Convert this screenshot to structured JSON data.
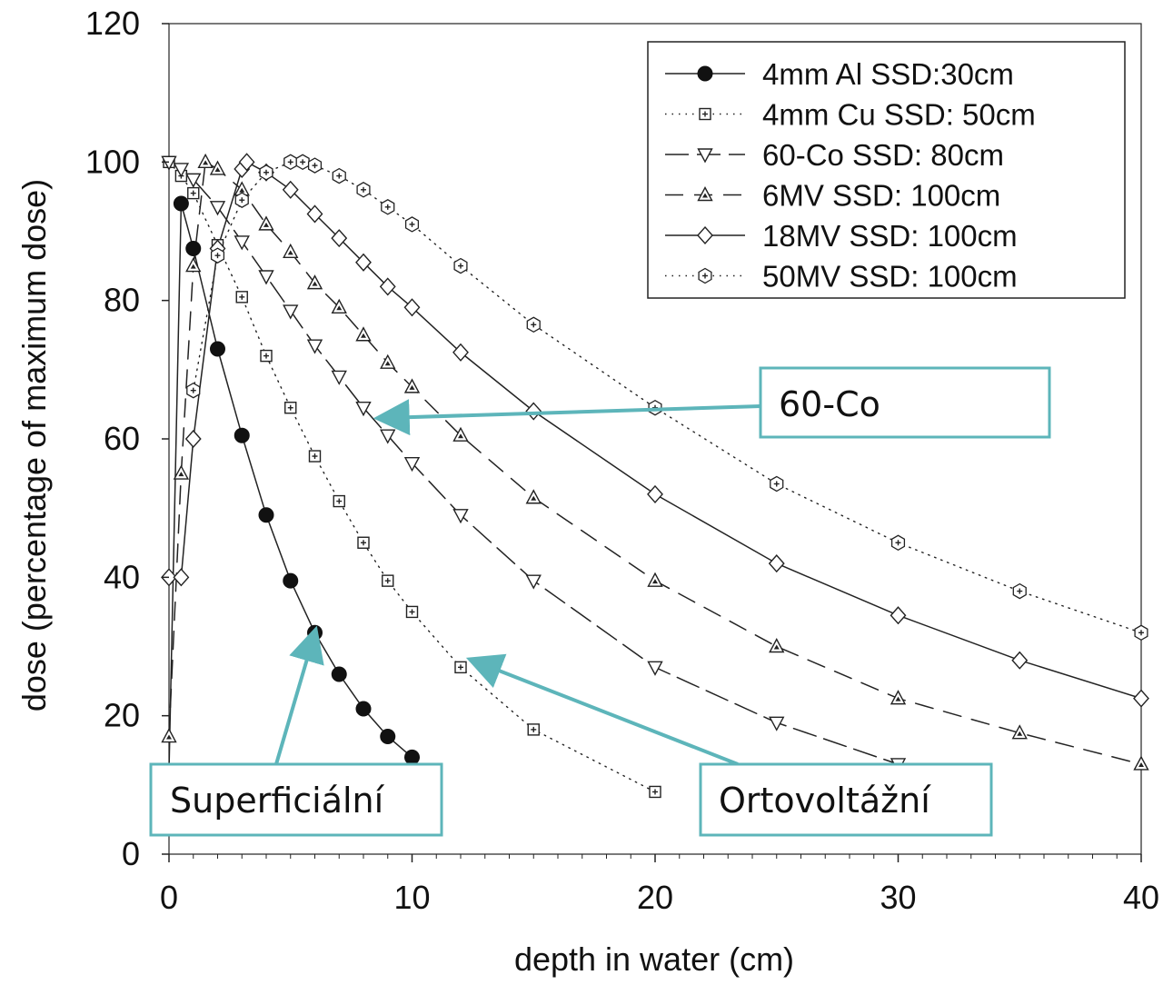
{
  "chart_data": {
    "type": "line",
    "xlabel": "depth in water (cm)",
    "ylabel": "dose (percentage of maximum dose)",
    "xlim": [
      0,
      40
    ],
    "ylim": [
      0,
      120
    ],
    "x_ticks": [
      0,
      10,
      20,
      30,
      40
    ],
    "y_ticks": [
      0,
      20,
      40,
      60,
      80,
      100,
      120
    ],
    "grid": false,
    "legend_position": "top-right",
    "series": [
      {
        "name": "4mm Al SSD:30cm",
        "marker": "filled-circle",
        "line": "solid",
        "x": [
          0,
          0.5,
          1,
          2,
          3,
          4,
          5,
          6,
          7,
          8,
          9,
          10
        ],
        "y": [
          12,
          94,
          87.5,
          73,
          60.5,
          49,
          39.5,
          32,
          26,
          21,
          17,
          14
        ]
      },
      {
        "name": "4mm Cu SSD: 50cm",
        "marker": "boxed-plus",
        "line": "dotted",
        "x": [
          0,
          0.5,
          1,
          2,
          3,
          4,
          5,
          6,
          7,
          8,
          9,
          10,
          12,
          15,
          20
        ],
        "y": [
          100,
          98,
          95.5,
          88,
          80.5,
          72,
          64.5,
          57.5,
          51,
          45,
          39.5,
          35,
          27,
          18,
          9
        ]
      },
      {
        "name": "60-Co SSD: 80cm",
        "marker": "triangle-down",
        "line": "long-dash",
        "x": [
          0,
          0.5,
          1,
          2,
          3,
          4,
          5,
          6,
          7,
          8,
          9,
          10,
          12,
          15,
          20,
          25,
          30
        ],
        "y": [
          100,
          99,
          97.5,
          93.5,
          88.5,
          83.5,
          78.5,
          73.5,
          69,
          64.5,
          60.5,
          56.5,
          49,
          39.5,
          27,
          19,
          13
        ]
      },
      {
        "name": "6MV SSD: 100cm",
        "marker": "triangle-up",
        "line": "dash",
        "x": [
          0,
          0.5,
          1,
          1.5,
          2,
          3,
          4,
          5,
          6,
          7,
          8,
          9,
          10,
          12,
          15,
          20,
          25,
          30,
          35,
          40
        ],
        "y": [
          17,
          55,
          85,
          100,
          99,
          96,
          91,
          87,
          82.5,
          79,
          75,
          71,
          67.5,
          60.5,
          51.5,
          39.5,
          30,
          22.5,
          17.5,
          13
        ]
      },
      {
        "name": "18MV SSD: 100cm",
        "marker": "diamond",
        "line": "solid",
        "x": [
          0,
          0.5,
          1,
          2,
          3,
          3.2,
          4,
          5,
          6,
          7,
          8,
          9,
          10,
          12,
          15,
          20,
          25,
          30,
          35,
          40
        ],
        "y": [
          40,
          40,
          60,
          87.5,
          99,
          100,
          98.5,
          96,
          92.5,
          89,
          85.5,
          82,
          79,
          72.5,
          64,
          52,
          42,
          34.5,
          28,
          22.5
        ]
      },
      {
        "name": "50MV SSD: 100cm",
        "marker": "hex-plus",
        "line": "dotted",
        "x": [
          1,
          2,
          3,
          4,
          5,
          5.5,
          6,
          7,
          8,
          9,
          10,
          12,
          15,
          20,
          25,
          30,
          35,
          40
        ],
        "y": [
          67,
          86.5,
          94.5,
          98.5,
          100,
          100,
          99.5,
          98,
          96,
          93.5,
          91,
          85,
          76.5,
          64.5,
          53.5,
          45,
          38,
          32
        ]
      }
    ],
    "annotations": [
      {
        "text": "60-Co",
        "points_to": {
          "x": 8.7,
          "y": 63
        }
      },
      {
        "text": "Superficiální",
        "points_to": {
          "x": 6,
          "y": 32
        }
      },
      {
        "text": "Ortovoltážní",
        "points_to": {
          "x": 12.5,
          "y": 28
        }
      }
    ],
    "colors": {
      "annotation": "#5db5ba",
      "axis": "#111111"
    }
  }
}
